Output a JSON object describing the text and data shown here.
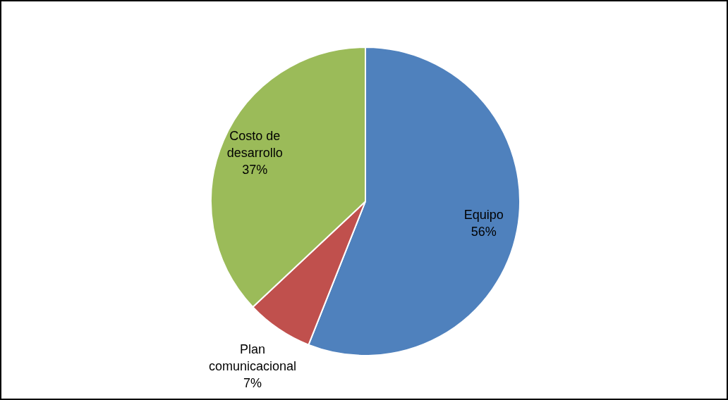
{
  "chart_data": {
    "type": "pie",
    "categories": [
      "Equipo",
      "Plan comunicacional",
      "Costo de desarrollo"
    ],
    "values": [
      56,
      7,
      37
    ],
    "colors": [
      "#4f81bd",
      "#c0504d",
      "#9bbb59"
    ],
    "value_labels": [
      "56%",
      "7%",
      "37%"
    ],
    "legend": false
  }
}
